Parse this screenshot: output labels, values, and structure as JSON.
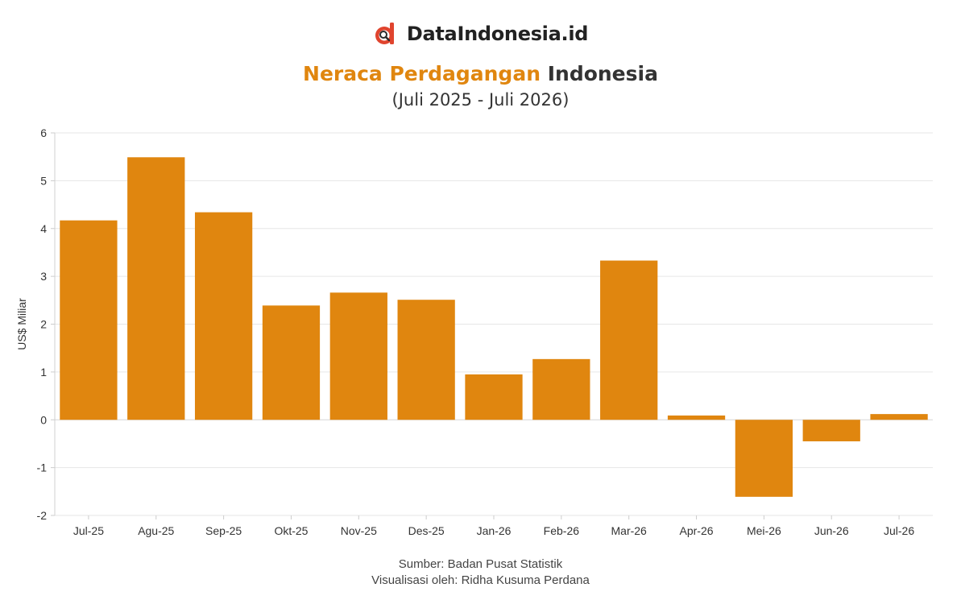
{
  "brand": {
    "name": "DataIndonesia.id",
    "accent_color": "#E0442E",
    "icon": "dataindonesia-logo-icon"
  },
  "header": {
    "title_highlight": "Neraca Perdagangan",
    "title_rest": "Indonesia",
    "subtitle": "(Juli 2025 - Juli 2026)"
  },
  "footer": {
    "source": "Sumber: Badan Pusat Statistik",
    "credit": "Visualisasi oleh: Ridha Kusuma Perdana"
  },
  "chart_data": {
    "type": "bar",
    "categories": [
      "Jul-25",
      "Agu-25",
      "Sep-25",
      "Okt-25",
      "Nov-25",
      "Des-25",
      "Jan-26",
      "Feb-26",
      "Mar-26",
      "Apr-26",
      "Mei-26",
      "Jun-26",
      "Jul-26"
    ],
    "values": [
      4.17,
      5.49,
      4.34,
      2.39,
      2.66,
      2.51,
      0.95,
      1.27,
      3.33,
      0.09,
      -1.61,
      -0.45,
      0.12
    ],
    "title": "Neraca Perdagangan Indonesia",
    "subtitle": "(Juli 2025 - Juli 2026)",
    "xlabel": "",
    "ylabel": "US$ Miliar",
    "ylim": [
      -2,
      6
    ],
    "yticks": [
      -2,
      -1,
      0,
      1,
      2,
      3,
      4,
      5,
      6
    ],
    "grid": true,
    "bar_color": "#E0860F"
  }
}
